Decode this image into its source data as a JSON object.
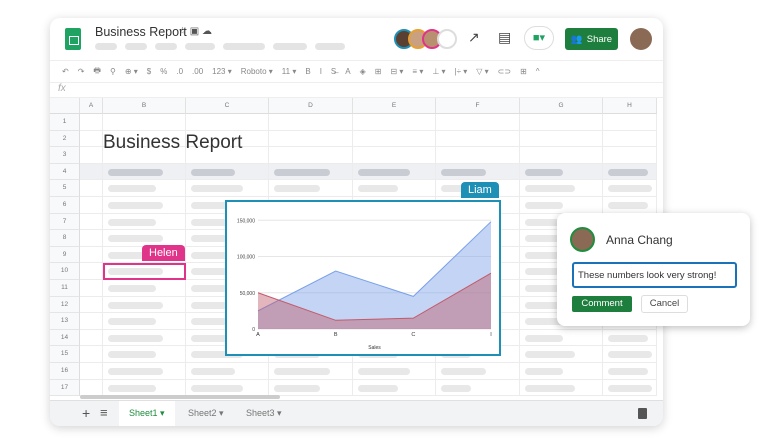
{
  "header": {
    "title": "Business Report",
    "share_label": "Share",
    "title_icons": "☆ ▣ ☁"
  },
  "toolbar": {
    "items": [
      "↶",
      "↷",
      "🖶",
      "⚲",
      "⊕ ▾",
      "$",
      "%",
      ".0",
      ".00",
      "123 ▾",
      "Roboto ▾",
      "11 ▾",
      "B",
      "I",
      "S̶",
      "A",
      "◈",
      "⊞",
      "⊟ ▾",
      "≡ ▾",
      "⊥ ▾",
      "|÷ ▾",
      "▽ ▾",
      "⊂⊃",
      "⊞",
      "^"
    ],
    "fx": "fx"
  },
  "grid": {
    "columns": [
      "A",
      "B",
      "C",
      "D",
      "E",
      "F",
      "G",
      "H"
    ],
    "rows": [
      "1",
      "2",
      "3",
      "4",
      "5",
      "6",
      "7",
      "8",
      "9",
      "10",
      "11",
      "12",
      "13",
      "14",
      "15",
      "16",
      "17"
    ],
    "doc_title": "Business Report"
  },
  "collaborators": {
    "helen": "Helen",
    "liam": "Liam",
    "helen_color": "#e0338a",
    "liam_color": "#1e8fb5"
  },
  "chart_data": {
    "type": "area",
    "categories": [
      "A",
      "B",
      "C",
      "I"
    ],
    "xlabel": "Sales",
    "ylim": [
      0,
      160000
    ],
    "yticks": [
      "0",
      "50,000",
      "100,000",
      "150,000"
    ],
    "grid": true,
    "series": [
      {
        "values": [
          25000,
          80000,
          45000,
          148000
        ],
        "color": "#7aa0e8"
      },
      {
        "values": [
          50000,
          12000,
          15000,
          77000
        ],
        "color": "#c25a6a"
      }
    ]
  },
  "comment": {
    "author": "Anna Chang",
    "text": "These numbers look very strong!",
    "comment_label": "Comment",
    "cancel_label": "Cancel"
  },
  "sheets": {
    "tabs": [
      "Sheet1",
      "Sheet2",
      "Sheet3"
    ],
    "active": "Sheet1",
    "add": "+",
    "list": "≡"
  }
}
